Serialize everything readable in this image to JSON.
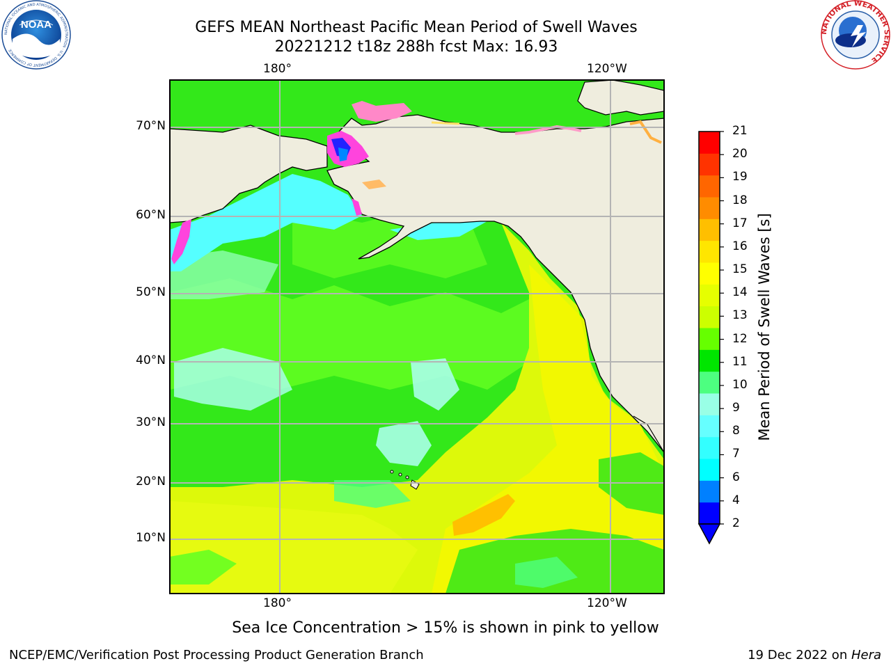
{
  "title": {
    "line1": "GEFS MEAN Northeast Pacific Mean Period of Swell Waves",
    "line2": "20221212 t18z 288h fcst   Max: 16.93"
  },
  "logos": {
    "left": "noaa-logo",
    "right": "national-weather-service-logo",
    "noaa_text": "NOAA",
    "noaa_ring_text": "NATIONAL OCEANIC AND ATMOSPHERIC ADMINISTRATION · U.S. DEPARTMENT OF COMMERCE",
    "nws_ring_text": "NATIONAL WEATHER SERVICE"
  },
  "map": {
    "lon_labels_top": [
      "180°",
      "120°W"
    ],
    "lon_labels_bottom": [
      "180°",
      "120°W"
    ],
    "lat_labels": [
      "70°N",
      "60°N",
      "50°N",
      "40°N",
      "30°N",
      "20°N",
      "10°N"
    ],
    "land_color": "#efedde",
    "grid_color": "#b4b4b4"
  },
  "colorbar": {
    "title": "Mean Period of Swell Waves [s]",
    "ticks": [
      "2",
      "4",
      "6",
      "7",
      "8",
      "9",
      "10",
      "11",
      "12",
      "13",
      "14",
      "15",
      "16",
      "17",
      "18",
      "19",
      "20",
      "21"
    ],
    "colors": [
      "#0000ff",
      "#0080ff",
      "#00ffff",
      "#33ffff",
      "#66ffff",
      "#99ffe6",
      "#4dff80",
      "#00e600",
      "#66ff00",
      "#ccff00",
      "#e6ff00",
      "#ffff00",
      "#ffe600",
      "#ffbf00",
      "#ff8c00",
      "#ff6600",
      "#ff3300",
      "#ff0000"
    ],
    "extend_min_color": "#0000ff"
  },
  "note": "Sea Ice Concentration > 15% is shown in pink to yellow",
  "footer": {
    "left": "NCEP/EMC/Verification Post Processing Product Generation Branch",
    "date": "19 Dec 2022 on ",
    "host": "Hera"
  }
}
